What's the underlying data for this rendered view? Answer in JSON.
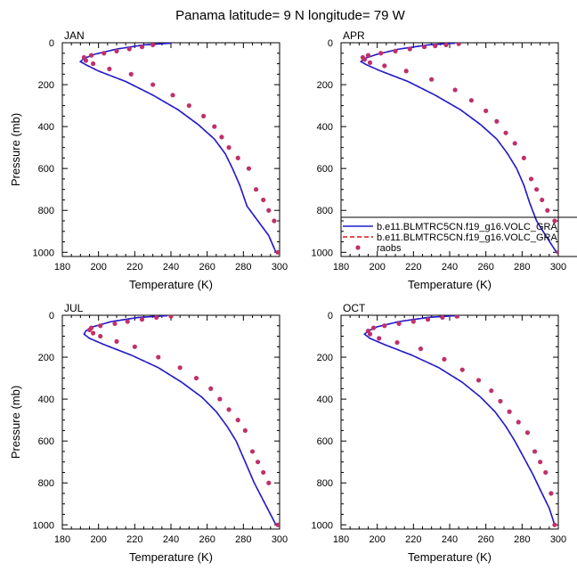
{
  "title": "Panama  latitude= 9 N longitude= 79 W",
  "colors": {
    "model": "#1f1fd0",
    "model_dashed": "#e01010",
    "raobs": "#c0306a"
  },
  "legend": {
    "placement": "inside APR panel, lower-left",
    "entries": [
      {
        "label": "b.e11.BLMTRC5CN.f19_g16.VOLC_GRA",
        "style": "solid-line",
        "color": "#1f1fd0"
      },
      {
        "label": "b.e11.BLMTRC5CN.f19_g16.VOLC_GRA",
        "style": "dashed-line",
        "color": "#e01010"
      },
      {
        "label": "raobs",
        "style": "dot",
        "color": "#c0306a"
      }
    ]
  },
  "chart_data": [
    {
      "type": "line",
      "panel": "JAN",
      "xlabel": "Temperature (K)",
      "ylabel": "Pressure (mb)",
      "xlim": [
        180,
        300
      ],
      "ylim": [
        1020,
        0
      ],
      "y_reversed": true,
      "xticks": [
        180,
        200,
        220,
        240,
        260,
        280,
        300
      ],
      "yticks": [
        0,
        200,
        400,
        600,
        800,
        1000
      ],
      "series": [
        {
          "name": "b.e11.BLMTRC5CN.f19_g16.VOLC_GRA",
          "x": [
            240,
            225,
            210,
            198,
            192,
            190,
            193,
            200,
            215,
            230,
            244,
            255,
            264,
            270,
            274,
            278,
            282,
            288,
            294,
            298
          ],
          "y": [
            2,
            10,
            30,
            55,
            75,
            90,
            105,
            135,
            185,
            250,
            320,
            390,
            460,
            530,
            600,
            680,
            780,
            850,
            920,
            1000
          ]
        },
        {
          "name": "b.e11.BLMTRC5CN.f19_g16.VOLC_GRA",
          "x": [
            240,
            225,
            210,
            198,
            192,
            190,
            193,
            200,
            215,
            230,
            244,
            255,
            264,
            270,
            274,
            278,
            282,
            288,
            294,
            298
          ],
          "y": [
            2,
            10,
            30,
            55,
            75,
            90,
            105,
            135,
            185,
            250,
            320,
            390,
            460,
            530,
            600,
            680,
            780,
            850,
            920,
            1000
          ]
        },
        {
          "name": "raobs",
          "x": [
            230,
            224,
            217,
            210,
            203,
            196,
            192,
            193,
            197,
            206,
            218,
            230,
            241,
            250,
            258,
            264,
            268,
            272,
            277,
            283,
            287,
            291,
            294,
            297,
            299
          ],
          "y": [
            10,
            20,
            30,
            40,
            50,
            60,
            70,
            85,
            100,
            125,
            150,
            200,
            250,
            300,
            350,
            400,
            450,
            500,
            550,
            600,
            700,
            750,
            800,
            850,
            1000
          ]
        }
      ]
    },
    {
      "type": "line",
      "panel": "APR",
      "xlabel": "Temperature (K)",
      "ylabel": "",
      "xlim": [
        180,
        300
      ],
      "ylim": [
        1020,
        0
      ],
      "y_reversed": true,
      "xticks": [
        180,
        200,
        220,
        240,
        260,
        280,
        300
      ],
      "yticks": [
        0,
        200,
        400,
        600,
        800,
        1000
      ],
      "series": [
        {
          "name": "b.e11.BLMTRC5CN.f19_g16.VOLC_GRA",
          "x": [
            243,
            228,
            212,
            200,
            193,
            191,
            194,
            202,
            217,
            232,
            246,
            257,
            266,
            272,
            277,
            281,
            284,
            288,
            293,
            299
          ],
          "y": [
            2,
            10,
            30,
            55,
            75,
            90,
            105,
            135,
            185,
            250,
            320,
            390,
            460,
            530,
            600,
            680,
            760,
            850,
            920,
            1000
          ]
        },
        {
          "name": "b.e11.BLMTRC5CN.f19_g16.VOLC_GRA",
          "x": [
            243,
            228,
            212,
            200,
            193,
            191,
            194,
            202,
            217,
            232,
            246,
            257,
            266,
            272,
            277,
            281,
            284,
            288,
            293,
            299
          ],
          "y": [
            2,
            10,
            30,
            55,
            75,
            90,
            105,
            135,
            185,
            250,
            320,
            390,
            460,
            530,
            600,
            680,
            760,
            850,
            920,
            1000
          ]
        },
        {
          "name": "raobs",
          "x": [
            245,
            238,
            232,
            226,
            218,
            210,
            202,
            195,
            192,
            193,
            196,
            204,
            216,
            230,
            243,
            252,
            260,
            266,
            271,
            276,
            281,
            285,
            288,
            291,
            294,
            298,
            300
          ],
          "y": [
            5,
            10,
            15,
            20,
            30,
            40,
            50,
            60,
            70,
            80,
            95,
            110,
            135,
            175,
            225,
            275,
            325,
            375,
            430,
            480,
            550,
            650,
            700,
            750,
            800,
            850,
            1000
          ]
        }
      ]
    },
    {
      "type": "line",
      "panel": "JUL",
      "xlabel": "Temperature (K)",
      "ylabel": "Pressure (mb)",
      "xlim": [
        180,
        300
      ],
      "ylim": [
        1020,
        0
      ],
      "y_reversed": true,
      "xticks": [
        180,
        200,
        220,
        240,
        260,
        280,
        300
      ],
      "yticks": [
        0,
        200,
        400,
        600,
        800,
        1000
      ],
      "series": [
        {
          "name": "b.e11.BLMTRC5CN.f19_g16.VOLC_GRA",
          "x": [
            238,
            222,
            207,
            197,
            193,
            192,
            195,
            203,
            218,
            233,
            246,
            257,
            265,
            271,
            276,
            281,
            286,
            292,
            298
          ],
          "y": [
            2,
            10,
            30,
            55,
            75,
            90,
            110,
            140,
            190,
            250,
            320,
            390,
            460,
            530,
            600,
            700,
            800,
            900,
            1000
          ]
        },
        {
          "name": "b.e11.BLMTRC5CN.f19_g16.VOLC_GRA",
          "x": [
            238,
            222,
            207,
            197,
            193,
            192,
            195,
            203,
            218,
            233,
            246,
            257,
            265,
            271,
            276,
            281,
            286,
            292,
            298
          ],
          "y": [
            2,
            10,
            30,
            55,
            75,
            90,
            110,
            140,
            190,
            250,
            320,
            390,
            460,
            530,
            600,
            700,
            800,
            900,
            1000
          ]
        },
        {
          "name": "raobs",
          "x": [
            240,
            232,
            224,
            216,
            209,
            201,
            196,
            195,
            197,
            201,
            210,
            220,
            233,
            245,
            254,
            262,
            267,
            272,
            277,
            281,
            285,
            288,
            291,
            294,
            299
          ],
          "y": [
            5,
            10,
            20,
            30,
            40,
            50,
            60,
            70,
            85,
            100,
            125,
            150,
            200,
            250,
            300,
            350,
            400,
            450,
            500,
            550,
            650,
            700,
            750,
            800,
            1000
          ]
        }
      ]
    },
    {
      "type": "line",
      "panel": "OCT",
      "xlabel": "Temperature (K)",
      "ylabel": "",
      "xlim": [
        180,
        300
      ],
      "ylim": [
        1020,
        0
      ],
      "y_reversed": true,
      "xticks": [
        180,
        200,
        220,
        240,
        260,
        280,
        300
      ],
      "yticks": [
        0,
        200,
        400,
        600,
        800,
        1000
      ],
      "series": [
        {
          "name": "b.e11.BLMTRC5CN.f19_g16.VOLC_GRA",
          "x": [
            243,
            228,
            212,
            200,
            195,
            193,
            196,
            204,
            219,
            234,
            247,
            257,
            265,
            271,
            276,
            281,
            286,
            291,
            295,
            298
          ],
          "y": [
            2,
            10,
            30,
            55,
            75,
            90,
            110,
            140,
            190,
            250,
            320,
            390,
            460,
            530,
            600,
            680,
            760,
            850,
            920,
            1000
          ]
        },
        {
          "name": "b.e11.BLMTRC5CN.f19_g16.VOLC_GRA",
          "x": [
            243,
            228,
            212,
            200,
            195,
            193,
            196,
            204,
            219,
            234,
            247,
            257,
            265,
            271,
            276,
            281,
            286,
            291,
            295,
            298
          ],
          "y": [
            2,
            10,
            30,
            55,
            75,
            90,
            110,
            140,
            190,
            250,
            320,
            390,
            460,
            530,
            600,
            680,
            760,
            850,
            920,
            1000
          ]
        },
        {
          "name": "raobs",
          "x": [
            244,
            236,
            228,
            220,
            212,
            204,
            198,
            195,
            196,
            201,
            211,
            224,
            237,
            247,
            256,
            263,
            268,
            273,
            278,
            283,
            287,
            290,
            293,
            296,
            298
          ],
          "y": [
            5,
            10,
            20,
            30,
            40,
            50,
            60,
            75,
            90,
            110,
            130,
            160,
            210,
            260,
            310,
            360,
            410,
            460,
            510,
            560,
            650,
            700,
            750,
            850,
            1000
          ]
        }
      ]
    }
  ]
}
